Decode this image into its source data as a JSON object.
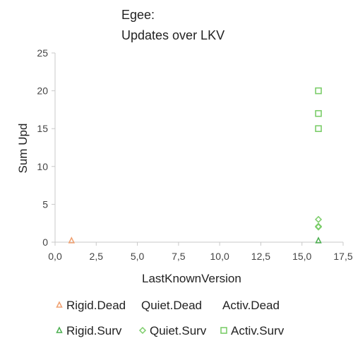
{
  "chart_data": {
    "type": "scatter",
    "title": [
      "Egee:",
      "Updates over LKV"
    ],
    "xlabel": "LastKnownVersion",
    "ylabel": "Sum Upd",
    "xlim": [
      0,
      17.5
    ],
    "ylim": [
      0,
      25
    ],
    "x_ticks": [
      "0,0",
      "2,5",
      "5,0",
      "7,5",
      "10,0",
      "12,5",
      "15,0",
      "17,5"
    ],
    "y_ticks": [
      "0",
      "5",
      "10",
      "15",
      "20",
      "25"
    ],
    "grid": false,
    "legend_position": "bottom",
    "series": [
      {
        "name": "Rigid.Dead",
        "marker": "triangle",
        "color": "#f0a070",
        "points": [
          [
            1,
            0.2
          ]
        ]
      },
      {
        "name": "Quiet.Dead",
        "marker": "none",
        "color": "#f0a070",
        "points": []
      },
      {
        "name": "Activ.Dead",
        "marker": "none",
        "color": "#f0a070",
        "points": []
      },
      {
        "name": "Rigid.Surv",
        "marker": "triangle",
        "color": "#4caf50",
        "points": [
          [
            16,
            0.2
          ]
        ]
      },
      {
        "name": "Quiet.Surv",
        "marker": "diamond",
        "color": "#7ccd6a",
        "points": [
          [
            16,
            2
          ],
          [
            16,
            2.1
          ],
          [
            16,
            3
          ]
        ]
      },
      {
        "name": "Activ.Surv",
        "marker": "square",
        "color": "#7ccd6a",
        "points": [
          [
            16,
            15
          ],
          [
            16,
            17
          ],
          [
            16,
            20
          ]
        ]
      }
    ]
  }
}
